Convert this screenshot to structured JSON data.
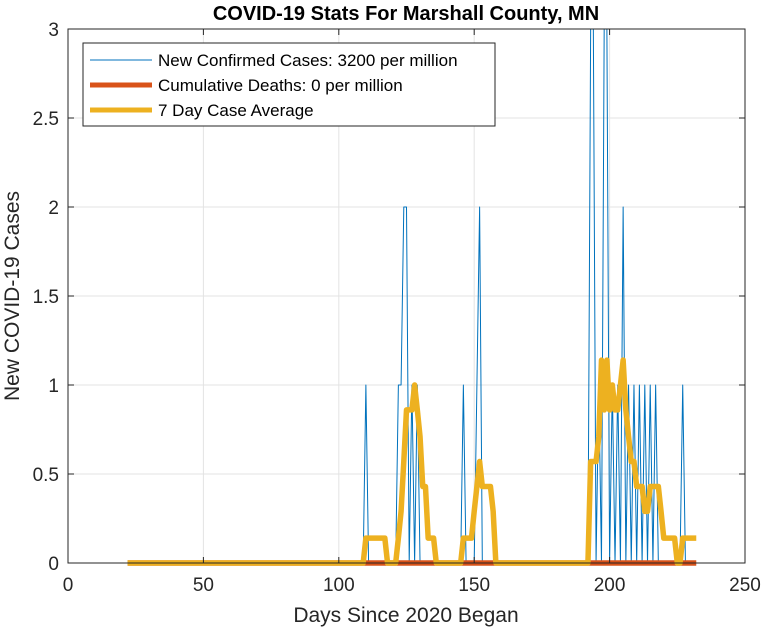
{
  "chart_data": {
    "type": "line",
    "title": "COVID-19 Stats For Marshall County, MN",
    "xlabel": "Days Since 2020 Began",
    "ylabel": "New COVID-19 Cases",
    "xlim": [
      0,
      250
    ],
    "ylim": [
      0,
      3
    ],
    "xticks": [
      0,
      50,
      100,
      150,
      200,
      250
    ],
    "yticks": [
      0,
      0.5,
      1,
      1.5,
      2,
      2.5,
      3
    ],
    "xtick_labels": [
      "0",
      "50",
      "100",
      "150",
      "200",
      "250"
    ],
    "ytick_labels": [
      "0",
      "0.5",
      "1",
      "1.5",
      "2",
      "2.5",
      "3"
    ],
    "grid": true,
    "legend_position": "top-left",
    "series": [
      {
        "name": "New Confirmed Cases: 3200 per million",
        "color": "#0072BD",
        "style": "thin-line",
        "x": [
          22,
          109,
          110,
          111,
          121,
          122,
          123,
          124,
          125,
          126,
          127,
          128,
          129,
          130,
          145,
          146,
          147,
          150,
          151,
          152,
          153,
          192,
          193,
          194,
          195,
          196,
          197,
          198,
          199,
          200,
          201,
          202,
          203,
          204,
          205,
          206,
          207,
          208,
          209,
          210,
          211,
          212,
          213,
          214,
          215,
          216,
          217,
          218,
          226,
          227,
          228,
          232
        ],
        "y": [
          0,
          0,
          1,
          0,
          0,
          1,
          1,
          2,
          2,
          0,
          1,
          0,
          1,
          0,
          0,
          1,
          0,
          0,
          1,
          2,
          0,
          0,
          3,
          3,
          0,
          1,
          0,
          3,
          3,
          0,
          1,
          0,
          1,
          0,
          2,
          0,
          1,
          0,
          1,
          0,
          1,
          0,
          1,
          0,
          1,
          0,
          1,
          0,
          0,
          1,
          0,
          0
        ]
      },
      {
        "name": "Cumulative Deaths: 0 per million",
        "color": "#D95319",
        "style": "thick-line",
        "x": [
          22,
          232
        ],
        "y": [
          0,
          0
        ]
      },
      {
        "name": "7 Day Case Average",
        "color": "#EDB120",
        "style": "thick-line",
        "x": [
          22,
          109,
          110,
          111,
          116,
          117,
          118,
          121,
          122,
          123,
          124,
          125,
          126,
          127,
          128,
          129,
          130,
          131,
          132,
          133,
          134,
          135,
          136,
          137,
          145,
          146,
          147,
          148,
          149,
          150,
          151,
          152,
          153,
          154,
          155,
          156,
          157,
          158,
          159,
          160,
          192,
          193,
          194,
          195,
          196,
          197,
          198,
          199,
          200,
          201,
          202,
          203,
          204,
          205,
          206,
          207,
          208,
          209,
          210,
          211,
          212,
          213,
          214,
          215,
          216,
          217,
          218,
          219,
          220,
          221,
          222,
          223,
          224,
          225,
          226,
          227,
          228,
          232
        ],
        "y": [
          0,
          0,
          0.14,
          0.14,
          0.14,
          0.14,
          0,
          0,
          0.14,
          0.29,
          0.57,
          0.86,
          0.86,
          0.86,
          1.0,
          0.86,
          0.71,
          0.43,
          0.43,
          0.14,
          0.14,
          0.14,
          0,
          0,
          0,
          0.14,
          0.14,
          0.14,
          0.14,
          0.29,
          0.43,
          0.57,
          0.43,
          0.43,
          0.43,
          0.43,
          0.29,
          0,
          0,
          0,
          0,
          0.57,
          0.57,
          0.57,
          0.71,
          1.14,
          0.86,
          1.14,
          0.86,
          1.0,
          0.86,
          0.86,
          1.0,
          1.14,
          0.86,
          0.71,
          0.57,
          0.57,
          0.43,
          0.43,
          0.43,
          0.29,
          0.29,
          0.43,
          0.43,
          0.43,
          0.43,
          0.29,
          0.14,
          0.14,
          0.14,
          0.14,
          0.14,
          0,
          0,
          0.14,
          0.14,
          0.14
        ]
      }
    ]
  }
}
